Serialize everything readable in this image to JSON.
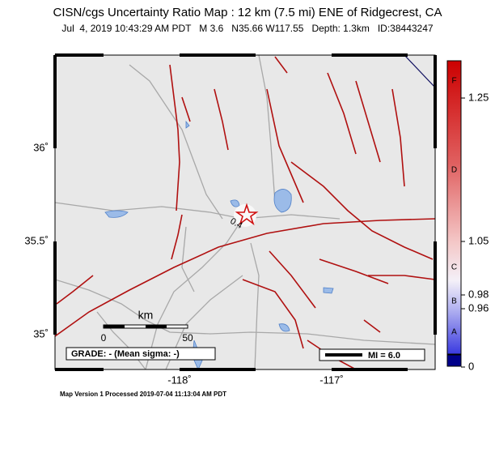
{
  "header": {
    "title": "CISN/cgs Uncertainty Ratio Map : 12 km (7.5 mi) ENE of Ridgecrest, CA",
    "subtitle": "Jul  4, 2019 10:43:29 AM PDT   M 3.6   N35.66 W117.55   Depth: 1.3km   ID:38443247"
  },
  "map": {
    "lat_labels": [
      "36˚",
      "35.5˚",
      "35˚"
    ],
    "lon_labels": [
      "-118˚",
      "-117˚"
    ],
    "contour_label": "0.4",
    "scale": {
      "unit": "km",
      "start": "0",
      "end": "50"
    },
    "grade": "GRADE: - (Mean sigma: -)",
    "legend": "MI = 6.0"
  },
  "colorbar": {
    "ticks": [
      "1.25",
      "1.05",
      "0.98",
      "0.96",
      "0"
    ],
    "grades": [
      "F",
      "D",
      "C",
      "B",
      "A"
    ]
  },
  "footer": "Map Version 1 Processed 2019-07-04 11:13:04 AM PDT"
}
